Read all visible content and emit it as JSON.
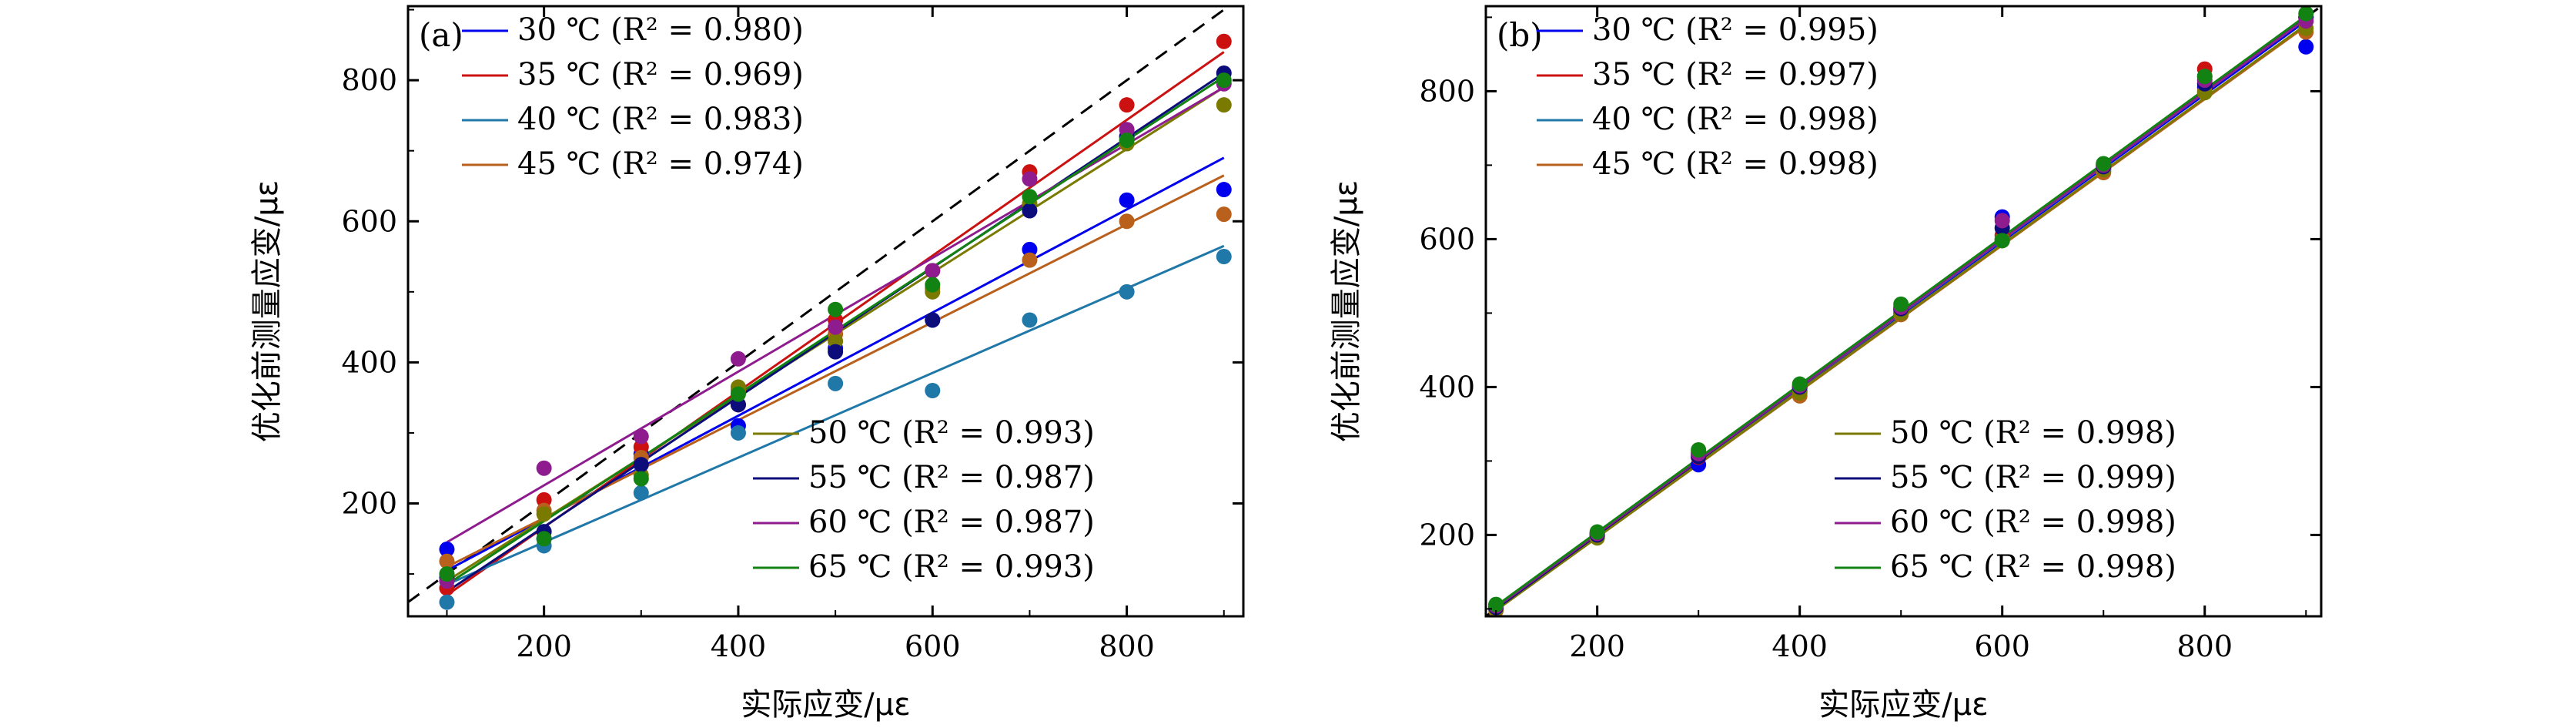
{
  "chart_data": [
    {
      "type": "scatter",
      "panel_label": "(a)",
      "xlabel": "实际应变/με",
      "ylabel": "优化前测量应变/με",
      "xlim": [
        60,
        920
      ],
      "ylim": [
        40,
        905
      ],
      "xticks": [
        200,
        400,
        600,
        800
      ],
      "yticks": [
        200,
        400,
        600,
        800
      ],
      "reference_line": {
        "style": "dashed",
        "x": [
          60,
          920
        ],
        "y": [
          60,
          920
        ]
      },
      "legend_top": [
        "30 ℃ (R² = 0.980)",
        "35 ℃ (R² = 0.969)",
        "40 ℃ (R² = 0.983)",
        "45 ℃ (R² = 0.974)"
      ],
      "legend_bottom": [
        "50 ℃ (R² = 0.993)",
        "55 ℃ (R² = 0.987)",
        "60 ℃ (R² = 0.987)",
        "65 ℃ (R² = 0.993)"
      ],
      "x": [
        100,
        200,
        300,
        400,
        500,
        600,
        700,
        800,
        900
      ],
      "series": [
        {
          "name": "30 ℃",
          "color": "#0000ee",
          "r2": "0.980",
          "values": [
            135,
            150,
            270,
            310,
            420,
            460,
            560,
            630,
            645
          ],
          "fit": [
            105,
            690
          ]
        },
        {
          "name": "35 ℃",
          "color": "#cc1111",
          "r2": "0.969",
          "values": [
            80,
            205,
            280,
            340,
            460,
            530,
            670,
            765,
            855
          ],
          "fit": [
            70,
            840
          ]
        },
        {
          "name": "40 ℃",
          "color": "#1f78a8",
          "r2": "0.983",
          "values": [
            60,
            140,
            215,
            300,
            370,
            360,
            460,
            500,
            550
          ],
          "fit": [
            85,
            565
          ]
        },
        {
          "name": "45 ℃",
          "color": "#b8601c",
          "r2": "0.974",
          "values": [
            118,
            190,
            265,
            360,
            440,
            505,
            545,
            600,
            610
          ],
          "fit": [
            110,
            665
          ]
        },
        {
          "name": "50 ℃",
          "color": "#7a7a00",
          "r2": "0.993",
          "values": [
            100,
            185,
            240,
            365,
            430,
            500,
            625,
            710,
            765
          ],
          "fit": [
            90,
            790
          ]
        },
        {
          "name": "55 ℃",
          "color": "#0c0c7a",
          "r2": "0.987",
          "values": [
            95,
            160,
            255,
            340,
            415,
            460,
            615,
            720,
            810
          ],
          "fit": [
            75,
            810
          ]
        },
        {
          "name": "60 ℃",
          "color": "#8e1c8e",
          "r2": "0.987",
          "values": [
            90,
            250,
            295,
            405,
            450,
            530,
            660,
            730,
            795
          ],
          "fit": [
            145,
            790
          ]
        },
        {
          "name": "65 ℃",
          "color": "#128212",
          "r2": "0.993",
          "values": [
            100,
            150,
            235,
            355,
            475,
            510,
            635,
            715,
            800
          ],
          "fit": [
            85,
            805
          ]
        }
      ]
    },
    {
      "type": "scatter",
      "panel_label": "(b)",
      "xlabel": "实际应变/με",
      "ylabel": "优化前测量应变/με",
      "xlim": [
        90,
        915
      ],
      "ylim": [
        90,
        915
      ],
      "xticks": [
        200,
        400,
        600,
        800
      ],
      "yticks": [
        200,
        400,
        600,
        800
      ],
      "reference_line": {
        "style": "dashed",
        "x": [
          90,
          915
        ],
        "y": [
          90,
          915
        ]
      },
      "legend_top": [
        "30 ℃ (R² = 0.995)",
        "35 ℃ (R² = 0.997)",
        "40 ℃ (R² = 0.998)",
        "45 ℃ (R² = 0.998)"
      ],
      "legend_bottom": [
        "50 ℃ (R² = 0.998)",
        "55 ℃ (R² = 0.999)",
        "60 ℃ (R² = 0.998)",
        "65 ℃ (R² = 0.998)"
      ],
      "x": [
        100,
        200,
        300,
        400,
        500,
        600,
        700,
        800,
        900
      ],
      "series": [
        {
          "name": "30 ℃",
          "color": "#0000ee",
          "r2": "0.995",
          "values": [
            105,
            200,
            295,
            395,
            505,
            630,
            695,
            805,
            860
          ],
          "fit": [
            100,
            895
          ]
        },
        {
          "name": "35 ℃",
          "color": "#cc1111",
          "r2": "0.997",
          "values": [
            100,
            202,
            305,
            400,
            500,
            605,
            700,
            830,
            900
          ],
          "fit": [
            98,
            900
          ]
        },
        {
          "name": "40 ℃",
          "color": "#1f78a8",
          "r2": "0.998",
          "values": [
            102,
            198,
            310,
            398,
            502,
            600,
            692,
            820,
            895
          ],
          "fit": [
            100,
            898
          ]
        },
        {
          "name": "45 ℃",
          "color": "#b8601c",
          "r2": "0.998",
          "values": [
            98,
            200,
            312,
            388,
            498,
            598,
            690,
            800,
            880
          ],
          "fit": [
            98,
            888
          ]
        },
        {
          "name": "50 ℃",
          "color": "#7a7a00",
          "r2": "0.998",
          "values": [
            100,
            196,
            308,
            392,
            500,
            600,
            694,
            798,
            885
          ],
          "fit": [
            98,
            890
          ]
        },
        {
          "name": "55 ℃",
          "color": "#0c0c7a",
          "r2": "0.999",
          "values": [
            102,
            200,
            306,
            400,
            506,
            615,
            698,
            810,
            900
          ],
          "fit": [
            100,
            900
          ]
        },
        {
          "name": "60 ℃",
          "color": "#8e1c8e",
          "r2": "0.998",
          "values": [
            104,
            202,
            310,
            402,
            508,
            625,
            700,
            815,
            895
          ],
          "fit": [
            102,
            898
          ]
        },
        {
          "name": "65 ℃",
          "color": "#128212",
          "r2": "0.998",
          "values": [
            106,
            204,
            315,
            404,
            512,
            598,
            702,
            820,
            905
          ],
          "fit": [
            104,
            902
          ]
        }
      ]
    }
  ]
}
